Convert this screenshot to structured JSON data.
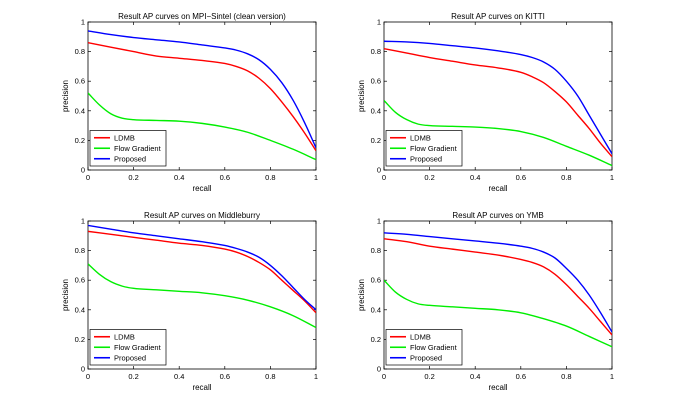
{
  "chart_data": [
    {
      "type": "line",
      "title": "Result AP curves on MPI−Sintel (clean version)",
      "xlabel": "recall",
      "ylabel": "precision",
      "xlim": [
        0,
        1
      ],
      "ylim": [
        0,
        1
      ],
      "xticks": [
        "0",
        "0.2",
        "0.4",
        "0.6",
        "0.8",
        "1"
      ],
      "yticks": [
        "0",
        "0.2",
        "0.4",
        "0.6",
        "0.8",
        "1"
      ],
      "grid": false,
      "legend_position": "bottom-left",
      "series": [
        {
          "name": "LDMB",
          "color": "#ff0000",
          "x": [
            0,
            0.1,
            0.2,
            0.3,
            0.4,
            0.5,
            0.6,
            0.65,
            0.7,
            0.75,
            0.8,
            0.85,
            0.9,
            0.95,
            1.0
          ],
          "y": [
            0.86,
            0.83,
            0.8,
            0.77,
            0.755,
            0.74,
            0.72,
            0.7,
            0.67,
            0.62,
            0.55,
            0.46,
            0.36,
            0.25,
            0.13
          ]
        },
        {
          "name": "Flow Gradient",
          "color": "#00ee00",
          "x": [
            0,
            0.05,
            0.1,
            0.15,
            0.2,
            0.3,
            0.4,
            0.5,
            0.6,
            0.7,
            0.8,
            0.9,
            1.0
          ],
          "y": [
            0.52,
            0.44,
            0.38,
            0.35,
            0.34,
            0.335,
            0.33,
            0.315,
            0.29,
            0.255,
            0.2,
            0.14,
            0.07
          ]
        },
        {
          "name": "Proposed",
          "color": "#0000ff",
          "x": [
            0,
            0.1,
            0.2,
            0.3,
            0.4,
            0.5,
            0.6,
            0.65,
            0.7,
            0.75,
            0.8,
            0.85,
            0.9,
            0.95,
            1.0
          ],
          "y": [
            0.94,
            0.915,
            0.895,
            0.88,
            0.865,
            0.845,
            0.825,
            0.81,
            0.785,
            0.745,
            0.68,
            0.59,
            0.47,
            0.32,
            0.15
          ]
        }
      ]
    },
    {
      "type": "line",
      "title": "Result AP curves on KITTI",
      "xlabel": "recall",
      "ylabel": "precision",
      "xlim": [
        0,
        1
      ],
      "ylim": [
        0,
        1
      ],
      "xticks": [
        "0",
        "0.2",
        "0.4",
        "0.6",
        "0.8",
        "1"
      ],
      "yticks": [
        "0",
        "0.2",
        "0.4",
        "0.6",
        "0.8",
        "1"
      ],
      "grid": false,
      "legend_position": "bottom-left",
      "series": [
        {
          "name": "LDMB",
          "color": "#ff0000",
          "x": [
            0,
            0.1,
            0.2,
            0.3,
            0.4,
            0.5,
            0.6,
            0.65,
            0.7,
            0.75,
            0.8,
            0.85,
            0.9,
            0.95,
            1.0
          ],
          "y": [
            0.82,
            0.79,
            0.76,
            0.735,
            0.71,
            0.69,
            0.66,
            0.63,
            0.59,
            0.53,
            0.46,
            0.37,
            0.28,
            0.18,
            0.09
          ]
        },
        {
          "name": "Flow Gradient",
          "color": "#00ee00",
          "x": [
            0,
            0.05,
            0.1,
            0.15,
            0.2,
            0.3,
            0.4,
            0.5,
            0.6,
            0.7,
            0.8,
            0.9,
            1.0
          ],
          "y": [
            0.47,
            0.39,
            0.34,
            0.31,
            0.3,
            0.295,
            0.29,
            0.28,
            0.26,
            0.22,
            0.16,
            0.1,
            0.03
          ]
        },
        {
          "name": "Proposed",
          "color": "#0000ff",
          "x": [
            0,
            0.1,
            0.2,
            0.3,
            0.4,
            0.5,
            0.6,
            0.65,
            0.7,
            0.75,
            0.8,
            0.85,
            0.9,
            0.95,
            1.0
          ],
          "y": [
            0.87,
            0.865,
            0.855,
            0.84,
            0.825,
            0.805,
            0.78,
            0.76,
            0.73,
            0.68,
            0.6,
            0.5,
            0.37,
            0.24,
            0.11
          ]
        }
      ]
    },
    {
      "type": "line",
      "title": "Result AP curves on Middleburry",
      "xlabel": "recall",
      "ylabel": "precision",
      "xlim": [
        0,
        1
      ],
      "ylim": [
        0,
        1
      ],
      "xticks": [
        "0",
        "0.2",
        "0.4",
        "0.6",
        "0.8",
        "1"
      ],
      "yticks": [
        "0",
        "0.2",
        "0.4",
        "0.6",
        "0.8",
        "1"
      ],
      "grid": false,
      "legend_position": "bottom-left",
      "series": [
        {
          "name": "LDMB",
          "color": "#ff0000",
          "x": [
            0,
            0.1,
            0.2,
            0.3,
            0.4,
            0.5,
            0.6,
            0.65,
            0.7,
            0.75,
            0.8,
            0.85,
            0.9,
            0.95,
            1.0
          ],
          "y": [
            0.93,
            0.91,
            0.89,
            0.87,
            0.85,
            0.835,
            0.81,
            0.79,
            0.76,
            0.72,
            0.67,
            0.6,
            0.53,
            0.46,
            0.38
          ]
        },
        {
          "name": "Flow Gradient",
          "color": "#00ee00",
          "x": [
            0,
            0.05,
            0.1,
            0.15,
            0.2,
            0.3,
            0.4,
            0.5,
            0.6,
            0.7,
            0.8,
            0.9,
            1.0
          ],
          "y": [
            0.71,
            0.64,
            0.59,
            0.56,
            0.545,
            0.535,
            0.525,
            0.515,
            0.495,
            0.465,
            0.42,
            0.36,
            0.28
          ]
        },
        {
          "name": "Proposed",
          "color": "#0000ff",
          "x": [
            0,
            0.1,
            0.2,
            0.3,
            0.4,
            0.5,
            0.6,
            0.65,
            0.7,
            0.75,
            0.8,
            0.85,
            0.9,
            0.95,
            1.0
          ],
          "y": [
            0.97,
            0.945,
            0.92,
            0.9,
            0.88,
            0.86,
            0.835,
            0.815,
            0.79,
            0.755,
            0.7,
            0.63,
            0.55,
            0.47,
            0.4
          ]
        }
      ]
    },
    {
      "type": "line",
      "title": "Result AP curves on YMB",
      "xlabel": "recall",
      "ylabel": "precision",
      "xlim": [
        0,
        1
      ],
      "ylim": [
        0,
        1
      ],
      "xticks": [
        "0",
        "0.2",
        "0.4",
        "0.6",
        "0.8",
        "1"
      ],
      "yticks": [
        "0",
        "0.2",
        "0.4",
        "0.6",
        "0.8",
        "1"
      ],
      "grid": false,
      "legend_position": "bottom-left",
      "series": [
        {
          "name": "LDMB",
          "color": "#ff0000",
          "x": [
            0,
            0.1,
            0.2,
            0.3,
            0.4,
            0.5,
            0.6,
            0.65,
            0.7,
            0.75,
            0.8,
            0.85,
            0.9,
            0.95,
            1.0
          ],
          "y": [
            0.88,
            0.86,
            0.83,
            0.81,
            0.79,
            0.77,
            0.74,
            0.72,
            0.69,
            0.64,
            0.57,
            0.49,
            0.41,
            0.32,
            0.23
          ]
        },
        {
          "name": "Flow Gradient",
          "color": "#00ee00",
          "x": [
            0,
            0.05,
            0.1,
            0.15,
            0.2,
            0.3,
            0.4,
            0.5,
            0.6,
            0.7,
            0.8,
            0.9,
            1.0
          ],
          "y": [
            0.6,
            0.52,
            0.47,
            0.44,
            0.43,
            0.42,
            0.41,
            0.4,
            0.38,
            0.34,
            0.29,
            0.22,
            0.15
          ]
        },
        {
          "name": "Proposed",
          "color": "#0000ff",
          "x": [
            0,
            0.1,
            0.2,
            0.3,
            0.4,
            0.5,
            0.6,
            0.65,
            0.7,
            0.75,
            0.8,
            0.85,
            0.9,
            0.95,
            1.0
          ],
          "y": [
            0.92,
            0.91,
            0.895,
            0.88,
            0.865,
            0.85,
            0.83,
            0.815,
            0.79,
            0.75,
            0.68,
            0.6,
            0.5,
            0.38,
            0.25
          ]
        }
      ]
    }
  ]
}
